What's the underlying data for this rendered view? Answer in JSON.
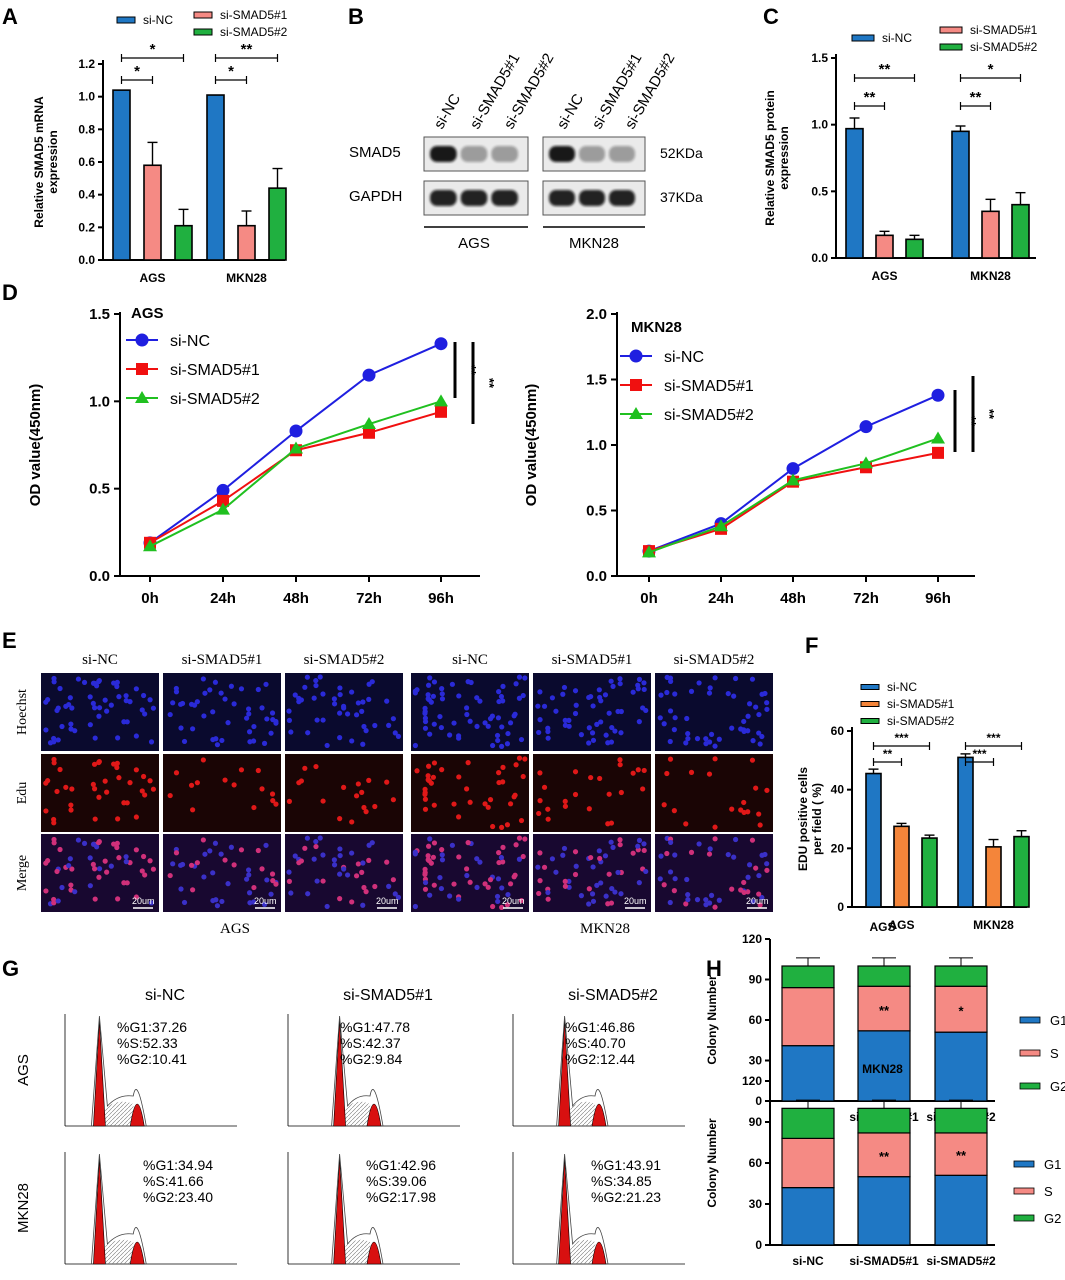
{
  "panel_labels": {
    "A": "A",
    "B": "B",
    "C": "C",
    "D": "D",
    "E": "E",
    "F": "F",
    "G": "G",
    "H": "H"
  },
  "colors": {
    "nc": "#1f77c4",
    "s1": "#f58a84",
    "s2": "#20b040",
    "f_s1": "#f4853a",
    "line_nc": "#1f1fe0",
    "line_s1": "#f01010",
    "line_s2": "#20c020"
  },
  "legend": {
    "nc": "si-NC",
    "s1": "si-SMAD5#1",
    "s2": "si-SMAD5#2"
  },
  "chart_data": [
    {
      "id": "A",
      "type": "bar",
      "ylabel": "Relative SMAD5 mRNA expression",
      "ylabel_lines": [
        "Relative SMAD5 mRNA",
        "expression"
      ],
      "categories": [
        "AGS",
        "MKN28"
      ],
      "ylim": [
        0,
        1.2
      ],
      "yticks": [
        "0.0",
        "0.2",
        "0.4",
        "0.6",
        "0.8",
        "1.0",
        "1.2"
      ],
      "series": [
        {
          "name": "si-NC",
          "values": [
            1.04,
            1.01
          ],
          "errors": [
            0,
            0
          ]
        },
        {
          "name": "si-SMAD5#1",
          "values": [
            0.58,
            0.21
          ],
          "errors": [
            0.14,
            0.09
          ]
        },
        {
          "name": "si-SMAD5#2",
          "values": [
            0.21,
            0.44
          ],
          "errors": [
            0.1,
            0.12
          ]
        }
      ],
      "significance": [
        {
          "group": "AGS",
          "pair": "NC-#1",
          "label": "*"
        },
        {
          "group": "AGS",
          "pair": "NC-#2",
          "label": "*"
        },
        {
          "group": "MKN28",
          "pair": "NC-#1",
          "label": "*"
        },
        {
          "group": "MKN28",
          "pair": "NC-#2",
          "label": "**"
        }
      ]
    },
    {
      "id": "C",
      "type": "bar",
      "ylabel": "Relative SMAD5 protein expression",
      "ylabel_lines": [
        "Relative SMAD5 protein",
        "expression"
      ],
      "categories": [
        "AGS",
        "MKN28"
      ],
      "ylim": [
        0,
        1.5
      ],
      "yticks": [
        "0.0",
        "0.5",
        "1.0",
        "1.5"
      ],
      "series": [
        {
          "name": "si-NC",
          "values": [
            0.97,
            0.95
          ],
          "errors": [
            0.08,
            0.04
          ]
        },
        {
          "name": "si-SMAD5#1",
          "values": [
            0.17,
            0.35
          ],
          "errors": [
            0.03,
            0.09
          ]
        },
        {
          "name": "si-SMAD5#2",
          "values": [
            0.14,
            0.4
          ],
          "errors": [
            0.03,
            0.09
          ]
        }
      ],
      "significance": [
        {
          "group": "AGS",
          "pair": "NC-#1",
          "label": "**"
        },
        {
          "group": "AGS",
          "pair": "NC-#2",
          "label": "**"
        },
        {
          "group": "MKN28",
          "pair": "NC-#1",
          "label": "**"
        },
        {
          "group": "MKN28",
          "pair": "NC-#2",
          "label": "*"
        }
      ]
    },
    {
      "id": "D1",
      "type": "line",
      "title": "AGS",
      "ylabel": "OD value(450nm)",
      "x": [
        "0h",
        "24h",
        "48h",
        "72h",
        "96h"
      ],
      "ylim": [
        0,
        1.5
      ],
      "yticks": [
        "0.0",
        "0.5",
        "1.0",
        "1.5"
      ],
      "series": [
        {
          "name": "si-NC",
          "values": [
            0.19,
            0.49,
            0.83,
            1.15,
            1.33
          ]
        },
        {
          "name": "si-SMAD5#1",
          "values": [
            0.19,
            0.43,
            0.72,
            0.82,
            0.94
          ]
        },
        {
          "name": "si-SMAD5#2",
          "values": [
            0.17,
            0.38,
            0.73,
            0.87,
            1.0
          ]
        }
      ],
      "significance": [
        "**",
        "**"
      ]
    },
    {
      "id": "D2",
      "type": "line",
      "title": "MKN28",
      "ylabel": "OD value(450nm)",
      "x": [
        "0h",
        "24h",
        "48h",
        "72h",
        "96h"
      ],
      "ylim": [
        0,
        2.0
      ],
      "yticks": [
        "0.0",
        "0.5",
        "1.0",
        "1.5",
        "2.0"
      ],
      "series": [
        {
          "name": "si-NC",
          "values": [
            0.19,
            0.4,
            0.82,
            1.14,
            1.38
          ]
        },
        {
          "name": "si-SMAD5#1",
          "values": [
            0.19,
            0.36,
            0.72,
            0.83,
            0.94
          ]
        },
        {
          "name": "si-SMAD5#2",
          "values": [
            0.18,
            0.38,
            0.73,
            0.86,
            1.05
          ]
        }
      ],
      "significance": [
        "**",
        "**"
      ]
    },
    {
      "id": "F",
      "type": "bar",
      "ylabel": "EDU positive cells per field ( %)",
      "ylabel_lines": [
        "EDU positive cells",
        "per field ( %)"
      ],
      "categories": [
        "AGS",
        "MKN28"
      ],
      "ylim": [
        0,
        60
      ],
      "yticks": [
        "0",
        "20",
        "40",
        "60"
      ],
      "series": [
        {
          "name": "si-NC",
          "values": [
            45.5,
            51
          ],
          "errors": [
            1.5,
            1.2
          ]
        },
        {
          "name": "si-SMAD5#1",
          "values": [
            27.5,
            20.5
          ],
          "errors": [
            1,
            2.5
          ]
        },
        {
          "name": "si-SMAD5#2",
          "values": [
            23.5,
            24
          ],
          "errors": [
            1,
            2
          ]
        }
      ],
      "significance": [
        {
          "group": "AGS",
          "pair": "NC-#1",
          "label": "**"
        },
        {
          "group": "AGS",
          "pair": "NC-#2",
          "label": "***"
        },
        {
          "group": "MKN28",
          "pair": "NC-#1",
          "label": "***"
        },
        {
          "group": "MKN28",
          "pair": "NC-#2",
          "label": "***"
        }
      ]
    },
    {
      "id": "H1",
      "type": "bar",
      "stacked": true,
      "title": "AGS",
      "ylabel": "Colony Number",
      "categories": [
        "si-NC",
        "si-SMAD5#1",
        "si-SMAD5#2"
      ],
      "ylim": [
        0,
        120
      ],
      "yticks": [
        "0",
        "30",
        "60",
        "90",
        "120"
      ],
      "series": [
        {
          "name": "G1",
          "values": [
            41,
            52,
            51
          ]
        },
        {
          "name": "S",
          "values": [
            43,
            33,
            34
          ]
        },
        {
          "name": "G2",
          "values": [
            16,
            15,
            15
          ]
        }
      ],
      "significance": [
        "",
        "**",
        "*"
      ]
    },
    {
      "id": "H2",
      "type": "bar",
      "stacked": true,
      "title": "MKN28",
      "ylabel": "Colony Number",
      "categories": [
        "si-NC",
        "si-SMAD5#1",
        "si-SMAD5#2"
      ],
      "ylim": [
        0,
        120
      ],
      "yticks": [
        "0",
        "30",
        "60",
        "90",
        "120"
      ],
      "series": [
        {
          "name": "G1",
          "values": [
            42,
            50,
            51
          ]
        },
        {
          "name": "S",
          "values": [
            36,
            32,
            31
          ]
        },
        {
          "name": "G2",
          "values": [
            22,
            18,
            18
          ]
        }
      ],
      "significance": [
        "",
        "**",
        "**"
      ]
    }
  ],
  "blot": {
    "lane_labels": [
      "si-NC",
      "si-SMAD5#1",
      "si-SMAD5#2",
      "si-NC",
      "si-SMAD5#1",
      "si-SMAD5#2"
    ],
    "rows": [
      {
        "name": "SMAD5",
        "size": "52KDa"
      },
      {
        "name": "GAPDH",
        "size": "37KDa"
      }
    ],
    "groups": [
      "AGS",
      "MKN28"
    ]
  },
  "edu": {
    "columns": [
      "si-NC",
      "si-SMAD5#1",
      "si-SMAD5#2",
      "si-NC",
      "si-SMAD5#1",
      "si-SMAD5#2"
    ],
    "rows": [
      "Hoechst",
      "Edu",
      "Merge"
    ],
    "scale": "20um",
    "groups": [
      "AGS",
      "MKN28"
    ]
  },
  "flow": {
    "columns": [
      "si-NC",
      "si-SMAD5#1",
      "si-SMAD5#2"
    ],
    "rows": [
      "AGS",
      "MKN28"
    ],
    "stats": [
      [
        [
          "%G1:37.26",
          "%S:52.33",
          "%G2:10.41"
        ],
        [
          "%G1:47.78",
          "%S:42.37",
          "%G2:9.84"
        ],
        [
          "%G1:46.86",
          "%S:40.70",
          "%G2:12.44"
        ]
      ],
      [
        [
          "%G1:34.94",
          "%S:41.66",
          "%G2:23.40"
        ],
        [
          "%G1:42.96",
          "%S:39.06",
          "%G2:17.98"
        ],
        [
          "%G1:43.91",
          "%S:34.85",
          "%G2:21.23"
        ]
      ]
    ]
  }
}
